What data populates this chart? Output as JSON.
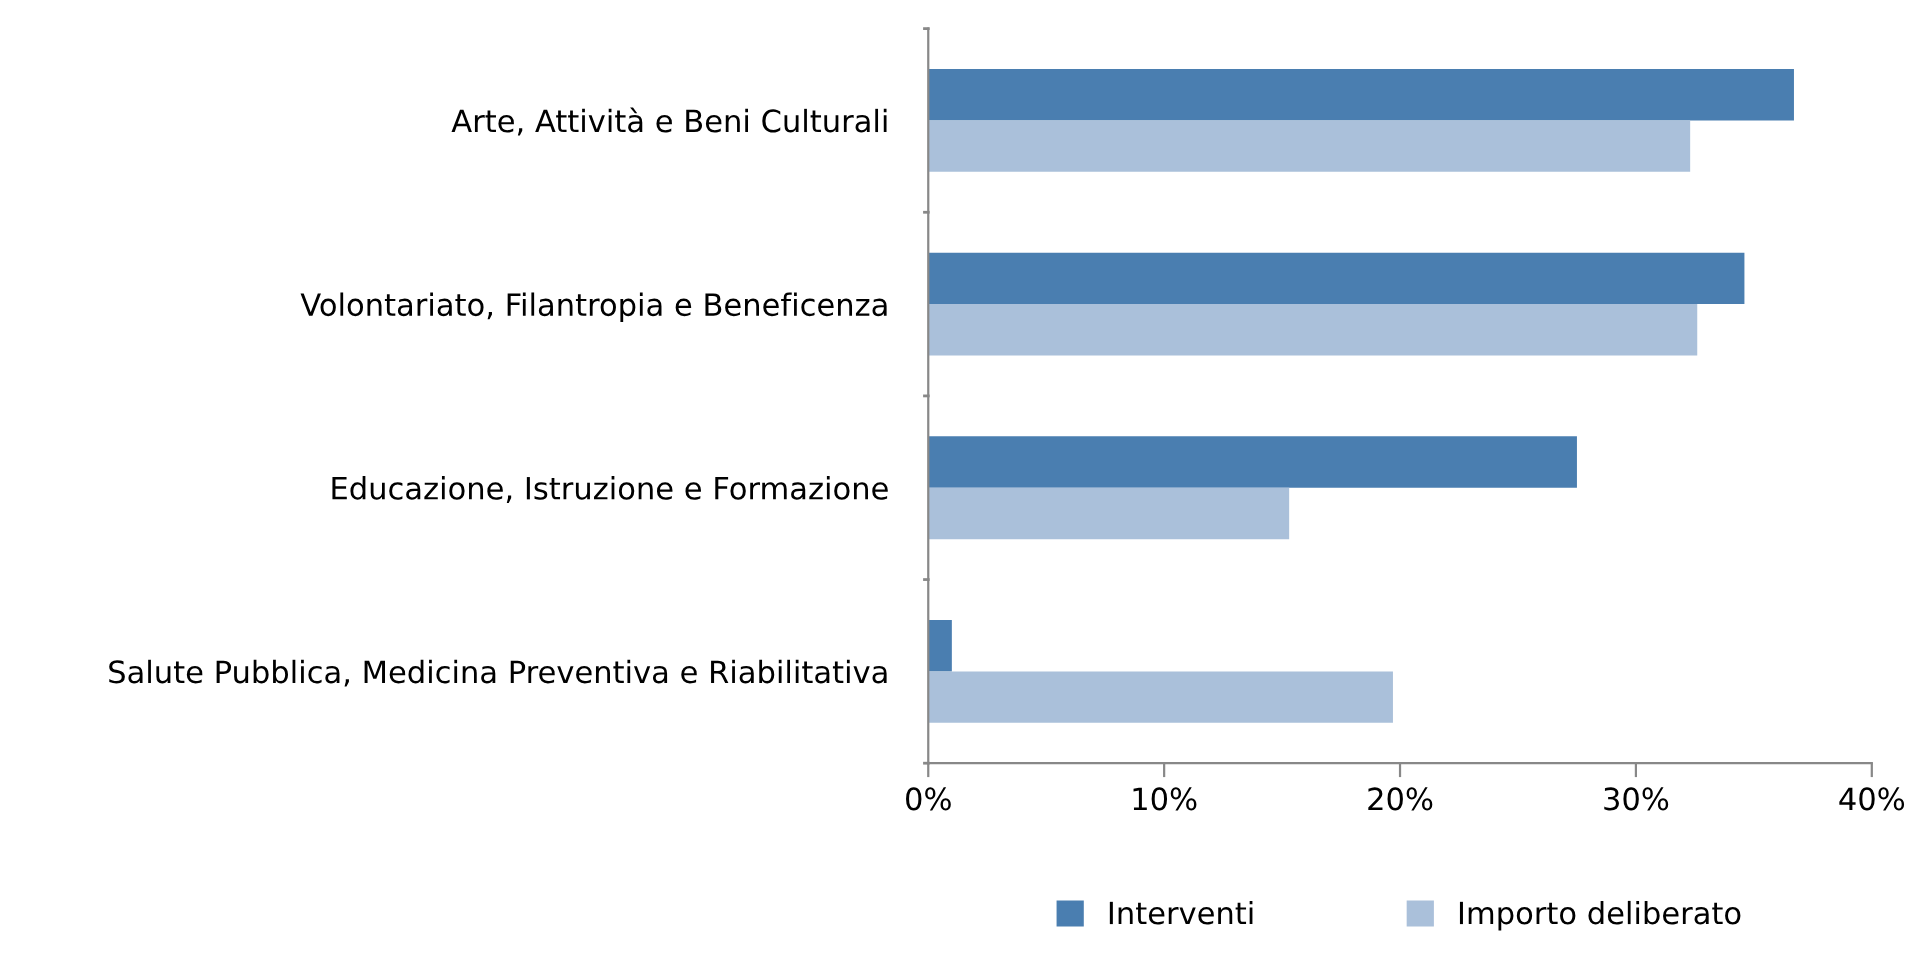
{
  "chart_data": {
    "type": "bar",
    "orientation": "horizontal",
    "categories": [
      "Arte, Attività e Beni Culturali",
      "Volontariato, Filantropia e Beneficenza",
      "Educazione, Istruzione e Formazione",
      "Salute Pubblica, Medicina Preventiva e Riabilitativa"
    ],
    "series": [
      {
        "name": "Interventi",
        "color": "#4a7eb0",
        "values": [
          36.7,
          34.6,
          27.5,
          1.0
        ]
      },
      {
        "name": "Importo deliberato",
        "color": "#aac0da",
        "values": [
          32.3,
          32.6,
          15.3,
          19.7
        ]
      }
    ],
    "xlim": [
      0,
      40
    ],
    "xticks": [
      {
        "value": 0,
        "label": "0%"
      },
      {
        "value": 10,
        "label": "10%"
      },
      {
        "value": 20,
        "label": "20%"
      },
      {
        "value": 30,
        "label": "30%"
      },
      {
        "value": 40,
        "label": "40%"
      }
    ],
    "grid": false,
    "legend": "bottom"
  }
}
